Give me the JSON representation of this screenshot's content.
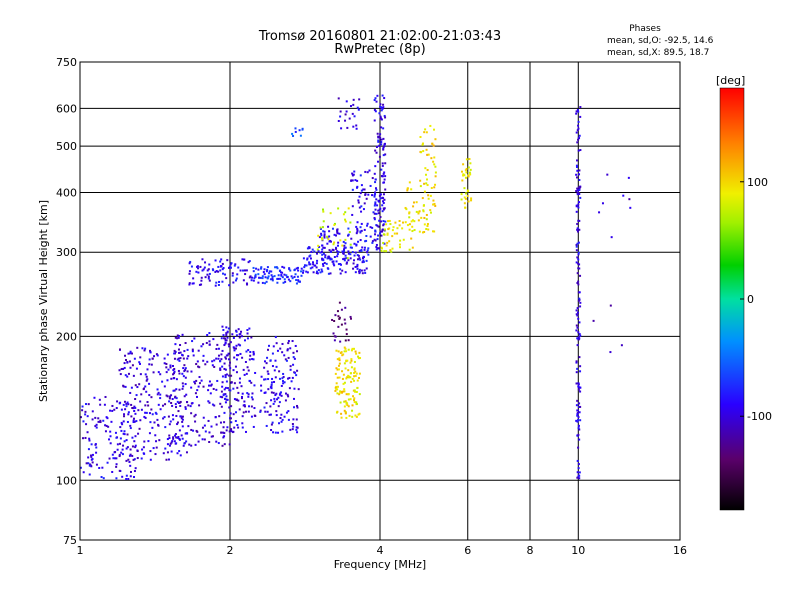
{
  "chart_data": {
    "type": "scatter",
    "title": "Tromsø 20160801 21:02:00-21:03:43",
    "subtitle": "RwPretec (8p)",
    "xlabel": "Frequency [MHz]",
    "ylabel": "Stationary phase Virtual Height [km]",
    "x_scale": "log",
    "y_scale": "log",
    "xlim": [
      1,
      16
    ],
    "ylim": [
      75,
      750
    ],
    "x_ticks": [
      1,
      2,
      4,
      6,
      8,
      10,
      16
    ],
    "y_ticks": [
      75,
      100,
      200,
      300,
      400,
      500,
      600,
      750
    ],
    "x_tick_labels": [
      "1",
      "2",
      "4",
      "6",
      "8",
      "10",
      "16"
    ],
    "y_tick_labels": [
      "75",
      "100",
      "200",
      "300",
      "400",
      "500",
      "600",
      "750"
    ],
    "grid": true,
    "info": {
      "heading": "Phases",
      "line1": "mean, sd,O: -92.5, 14.6",
      "line2": "mean, sd,X:  89.5, 18.7"
    },
    "colorbar": {
      "label": "[deg]",
      "min": -180,
      "max": 180,
      "ticks": [
        -100,
        0,
        100
      ],
      "tick_labels": [
        "-100",
        "0",
        "100"
      ]
    },
    "clusters": [
      {
        "x": [
          1.0,
          1.3
        ],
        "y": [
          100,
          150
        ],
        "n": 140,
        "phase": -95
      },
      {
        "x": [
          1.2,
          1.65
        ],
        "y": [
          110,
          190
        ],
        "n": 220,
        "phase": -100
      },
      {
        "x": [
          1.5,
          2.0
        ],
        "y": [
          118,
          205
        ],
        "n": 220,
        "phase": -100
      },
      {
        "x": [
          1.9,
          2.25
        ],
        "y": [
          125,
          210
        ],
        "n": 160,
        "phase": -98
      },
      {
        "x": [
          2.3,
          2.75
        ],
        "y": [
          125,
          200
        ],
        "n": 140,
        "phase": -95
      },
      {
        "x": [
          1.65,
          2.2
        ],
        "y": [
          255,
          290
        ],
        "n": 90,
        "phase": -92
      },
      {
        "x": [
          2.2,
          2.8
        ],
        "y": [
          258,
          280
        ],
        "n": 90,
        "phase": -75
      },
      {
        "x": [
          2.8,
          3.8
        ],
        "y": [
          270,
          310
        ],
        "n": 150,
        "phase": -90
      },
      {
        "x": [
          3.0,
          3.9
        ],
        "y": [
          300,
          340
        ],
        "n": 70,
        "phase": -88
      },
      {
        "x": [
          3.5,
          4.1
        ],
        "y": [
          330,
          450
        ],
        "n": 70,
        "phase": -92
      },
      {
        "x": [
          3.9,
          4.1
        ],
        "y": [
          300,
          640
        ],
        "n": 120,
        "phase": -95
      },
      {
        "x": [
          3.3,
          3.65
        ],
        "y": [
          540,
          630
        ],
        "n": 22,
        "phase": -100
      },
      {
        "x": [
          2.6,
          2.8
        ],
        "y": [
          525,
          545
        ],
        "n": 8,
        "phase": -60
      },
      {
        "x": [
          3.25,
          3.65
        ],
        "y": [
          135,
          190
        ],
        "n": 130,
        "phase": 95
      },
      {
        "x": [
          3.2,
          3.5
        ],
        "y": [
          195,
          240
        ],
        "n": 25,
        "phase": -130
      },
      {
        "x": [
          3.0,
          3.5
        ],
        "y": [
          290,
          375
        ],
        "n": 30,
        "phase": 80
      },
      {
        "x": [
          4.0,
          4.7
        ],
        "y": [
          300,
          350
        ],
        "n": 45,
        "phase": 92
      },
      {
        "x": [
          4.5,
          5.2
        ],
        "y": [
          330,
          420
        ],
        "n": 60,
        "phase": 95
      },
      {
        "x": [
          4.8,
          5.2
        ],
        "y": [
          420,
          560
        ],
        "n": 30,
        "phase": 100
      },
      {
        "x": [
          5.8,
          6.1
        ],
        "y": [
          370,
          470
        ],
        "n": 35,
        "phase": 92
      },
      {
        "x": [
          9.9,
          10.1
        ],
        "y": [
          100,
          630
        ],
        "n": 150,
        "phase": -95
      },
      {
        "x": [
          10.5,
          13.2
        ],
        "y": [
          170,
          500
        ],
        "n": 12,
        "phase": -100
      }
    ]
  }
}
